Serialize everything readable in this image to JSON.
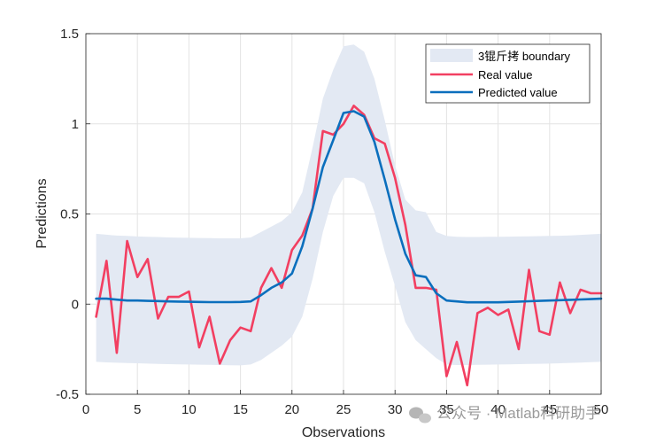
{
  "chart_data": {
    "type": "line",
    "xlabel": "Observations",
    "ylabel": "Predictions",
    "xlim": [
      0,
      50
    ],
    "ylim": [
      -0.5,
      1.5
    ],
    "xticks": [
      0,
      5,
      10,
      15,
      20,
      25,
      30,
      35,
      40,
      45,
      50
    ],
    "yticks": [
      -0.5,
      0,
      0.5,
      1,
      1.5
    ],
    "xtick_labels": [
      "0",
      "5",
      "10",
      "15",
      "20",
      "25",
      "30",
      "35",
      "40",
      "45",
      "50"
    ],
    "ytick_labels": [
      "-0.5",
      "0",
      "0.5",
      "1",
      "1.5"
    ],
    "grid": true,
    "legend_position": "top-right",
    "x": [
      1,
      2,
      3,
      4,
      5,
      6,
      7,
      8,
      9,
      10,
      11,
      12,
      13,
      14,
      15,
      16,
      17,
      18,
      19,
      20,
      21,
      22,
      23,
      24,
      25,
      26,
      27,
      28,
      29,
      30,
      31,
      32,
      33,
      34,
      35,
      36,
      37,
      38,
      39,
      40,
      41,
      42,
      43,
      44,
      45,
      46,
      47,
      48,
      49,
      50
    ],
    "band": {
      "name": "3锟斤拷 boundary",
      "color": "#e3e9f3",
      "upper": [
        0.39,
        0.385,
        0.38,
        0.378,
        0.375,
        0.373,
        0.372,
        0.37,
        0.369,
        0.368,
        0.367,
        0.366,
        0.365,
        0.365,
        0.365,
        0.37,
        0.4,
        0.43,
        0.46,
        0.51,
        0.62,
        0.87,
        1.14,
        1.3,
        1.43,
        1.44,
        1.4,
        1.25,
        1.02,
        0.77,
        0.58,
        0.52,
        0.51,
        0.4,
        0.378,
        0.373,
        0.372,
        0.372,
        0.373,
        0.373,
        0.374,
        0.375,
        0.376,
        0.377,
        0.378,
        0.379,
        0.381,
        0.384,
        0.387,
        0.39
      ],
      "lower": [
        -0.32,
        -0.323,
        -0.325,
        -0.327,
        -0.328,
        -0.33,
        -0.332,
        -0.333,
        -0.334,
        -0.335,
        -0.336,
        -0.337,
        -0.338,
        -0.339,
        -0.34,
        -0.335,
        -0.31,
        -0.27,
        -0.23,
        -0.18,
        -0.07,
        0.14,
        0.4,
        0.6,
        0.7,
        0.7,
        0.67,
        0.51,
        0.29,
        0.1,
        -0.1,
        -0.2,
        -0.25,
        -0.3,
        -0.335,
        -0.338,
        -0.338,
        -0.337,
        -0.336,
        -0.335,
        -0.334,
        -0.333,
        -0.332,
        -0.331,
        -0.33,
        -0.328,
        -0.326,
        -0.324,
        -0.322,
        -0.32
      ]
    },
    "series": [
      {
        "name": "Real value",
        "color": "#f23f61",
        "values": [
          -0.07,
          0.24,
          -0.27,
          0.35,
          0.15,
          0.25,
          -0.08,
          0.04,
          0.04,
          0.07,
          -0.24,
          -0.07,
          -0.33,
          -0.2,
          -0.13,
          -0.15,
          0.09,
          0.2,
          0.09,
          0.3,
          0.38,
          0.53,
          0.96,
          0.94,
          1.0,
          1.1,
          1.05,
          0.92,
          0.89,
          0.7,
          0.44,
          0.09,
          0.09,
          0.08,
          -0.4,
          -0.21,
          -0.45,
          -0.05,
          -0.02,
          -0.06,
          -0.03,
          -0.25,
          0.19,
          -0.15,
          -0.17,
          0.12,
          -0.05,
          0.08,
          0.06,
          0.06
        ]
      },
      {
        "name": "Predicted value",
        "color": "#0b6fbd",
        "values": [
          0.03,
          0.03,
          0.025,
          0.02,
          0.02,
          0.018,
          0.017,
          0.015,
          0.014,
          0.013,
          0.012,
          0.011,
          0.011,
          0.011,
          0.012,
          0.015,
          0.05,
          0.09,
          0.12,
          0.17,
          0.32,
          0.53,
          0.76,
          0.91,
          1.06,
          1.07,
          1.04,
          0.9,
          0.69,
          0.47,
          0.28,
          0.16,
          0.15,
          0.06,
          0.02,
          0.015,
          0.01,
          0.01,
          0.01,
          0.01,
          0.012,
          0.014,
          0.016,
          0.018,
          0.02,
          0.022,
          0.024,
          0.026,
          0.028,
          0.03
        ]
      }
    ]
  },
  "watermark": {
    "icon": "wechat-icon",
    "text": "公众号 · Matlab科研助手"
  }
}
